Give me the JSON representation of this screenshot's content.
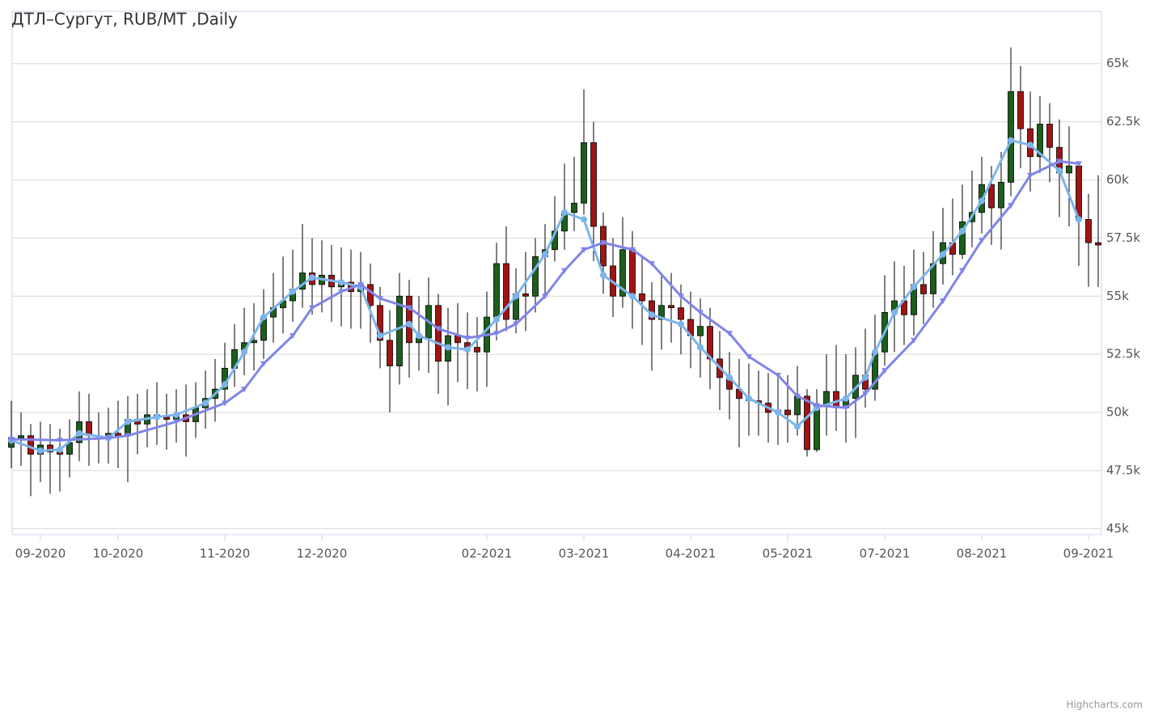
{
  "chart_data": {
    "type": "candlestick",
    "title": "ДТЛ–Сургут, RUB/MT ,Daily",
    "credit": "Highcharts.com",
    "up_color": "#1c5e1c",
    "down_color": "#a01414",
    "ylim": [
      44750,
      67250
    ],
    "yticks": [
      {
        "value": 45000,
        "label": "45k"
      },
      {
        "value": 47500,
        "label": "47.5k"
      },
      {
        "value": 50000,
        "label": "50k"
      },
      {
        "value": 52500,
        "label": "52.5k"
      },
      {
        "value": 55000,
        "label": "55k"
      },
      {
        "value": 57500,
        "label": "57.5k"
      },
      {
        "value": 60000,
        "label": "60k"
      },
      {
        "value": 62500,
        "label": "62.5k"
      },
      {
        "value": 65000,
        "label": "65k"
      }
    ],
    "grid": true,
    "categories": [
      null,
      null,
      null,
      "09-2020",
      null,
      null,
      null,
      null,
      null,
      null,
      null,
      "10-2020",
      null,
      null,
      null,
      null,
      null,
      null,
      null,
      null,
      null,
      null,
      "11-2020",
      null,
      null,
      null,
      null,
      null,
      null,
      null,
      null,
      null,
      "12-2020",
      null,
      null,
      null,
      null,
      null,
      null,
      null,
      null,
      null,
      null,
      null,
      null,
      null,
      null,
      null,
      null,
      "02-2021",
      null,
      null,
      null,
      null,
      null,
      null,
      null,
      null,
      null,
      "03-2021",
      null,
      null,
      null,
      null,
      null,
      null,
      null,
      null,
      null,
      null,
      "04-2021",
      null,
      null,
      null,
      null,
      null,
      null,
      null,
      null,
      null,
      "05-2021",
      null,
      null,
      null,
      null,
      null,
      null,
      null,
      null,
      null,
      "07-2021",
      null,
      null,
      null,
      null,
      null,
      null,
      null,
      null,
      null,
      "08-2021",
      null,
      null,
      null,
      null,
      null,
      null,
      null,
      null,
      null,
      null,
      "09-2021",
      null
    ],
    "open": [
      48500,
      48900,
      49000,
      48200,
      48600,
      48300,
      48200,
      48700,
      49600,
      49000,
      49000,
      49100,
      49000,
      49700,
      49500,
      49900,
      49800,
      49700,
      49900,
      49600,
      50200,
      50600,
      51000,
      51900,
      52700,
      53000,
      53100,
      54100,
      54500,
      54800,
      55300,
      56000,
      55500,
      55900,
      55400,
      55600,
      55200,
      55500,
      54600,
      53100,
      52000,
      55000,
      53000,
      53200,
      54600,
      52200,
      53300,
      53000,
      52800,
      52600,
      54100,
      56400,
      54000,
      55100,
      55000,
      56700,
      57000,
      57800,
      58600,
      59000,
      61600,
      58000,
      56300,
      55000,
      57000,
      55100,
      54800,
      54000,
      54600,
      54500,
      54000,
      53300,
      53700,
      52300,
      51500,
      51000,
      50600,
      50500,
      50400,
      50000,
      50100,
      49900,
      50700,
      48400,
      50300,
      50900,
      50200,
      50600,
      51600,
      51000,
      52600,
      54300,
      54800,
      54200,
      55500,
      55100,
      56400,
      57300,
      56800,
      58200,
      58600,
      59800,
      58800,
      59900,
      63800,
      62200,
      61000,
      62400,
      61400,
      60300,
      60600,
      58300,
      57300
    ],
    "high": [
      50500,
      50000,
      49500,
      49600,
      49500,
      49300,
      49700,
      50900,
      50800,
      50000,
      50200,
      50500,
      50700,
      50800,
      51000,
      51300,
      50800,
      51000,
      51200,
      51300,
      51800,
      52300,
      53000,
      53800,
      54500,
      54700,
      55300,
      56000,
      56700,
      57000,
      58100,
      57500,
      57400,
      57200,
      57100,
      57000,
      56900,
      56400,
      55400,
      54400,
      56000,
      55700,
      55000,
      55800,
      55100,
      54500,
      54700,
      54300,
      54100,
      55200,
      57300,
      58000,
      56200,
      56900,
      57500,
      58100,
      59300,
      60700,
      61000,
      63900,
      62500,
      58600,
      57500,
      58400,
      57800,
      56700,
      55600,
      55900,
      56000,
      55500,
      55200,
      54900,
      54500,
      53500,
      52600,
      52300,
      52100,
      51800,
      51700,
      51500,
      51600,
      52000,
      51000,
      51000,
      52500,
      52900,
      52500,
      52800,
      53600,
      54200,
      55900,
      56500,
      56300,
      57000,
      56900,
      57800,
      58800,
      59200,
      59800,
      60400,
      61000,
      60600,
      61200,
      65700,
      64900,
      63800,
      63600,
      63300,
      62600,
      62300,
      60600,
      59400,
      60200
    ],
    "low": [
      47600,
      47700,
      46400,
      47000,
      46500,
      46600,
      47200,
      47900,
      47700,
      47800,
      47800,
      47600,
      47000,
      48200,
      48500,
      48600,
      48400,
      48700,
      48100,
      48900,
      49300,
      49600,
      50500,
      51100,
      51600,
      51800,
      52300,
      53000,
      53400,
      53900,
      54500,
      54200,
      54300,
      53900,
      53700,
      53600,
      53600,
      53000,
      51900,
      50000,
      51200,
      51500,
      51800,
      51700,
      50800,
      50300,
      51300,
      51000,
      50900,
      51100,
      53100,
      53500,
      53400,
      53500,
      54300,
      55100,
      56500,
      57000,
      57800,
      58500,
      56500,
      55100,
      54100,
      54500,
      53600,
      52900,
      51800,
      52700,
      53000,
      52500,
      51900,
      51500,
      51000,
      50100,
      49700,
      48500,
      49000,
      49000,
      48700,
      48600,
      48700,
      49000,
      48100,
      48300,
      49000,
      49200,
      48700,
      48900,
      50200,
      50500,
      52000,
      52600,
      52900,
      53300,
      53800,
      54500,
      55500,
      55900,
      56600,
      57100,
      57700,
      57200,
      57000,
      59300,
      60500,
      59500,
      60300,
      59900,
      58400,
      58000,
      56300,
      55400,
      55400
    ],
    "close": [
      48900,
      49000,
      48200,
      48600,
      48300,
      48200,
      48700,
      49600,
      49000,
      49000,
      49100,
      49000,
      49700,
      49500,
      49900,
      49800,
      49700,
      49900,
      49600,
      50200,
      50600,
      51000,
      51900,
      52700,
      53000,
      53100,
      54100,
      54500,
      54800,
      55300,
      56000,
      55500,
      55900,
      55400,
      55600,
      55200,
      55500,
      54600,
      53100,
      52000,
      55000,
      53000,
      53200,
      54600,
      52200,
      53300,
      53000,
      52800,
      52600,
      54100,
      56400,
      54000,
      55100,
      55000,
      56700,
      57000,
      57800,
      58600,
      59000,
      61600,
      58000,
      56300,
      55000,
      57000,
      55100,
      54800,
      54000,
      54600,
      54500,
      54000,
      53300,
      53700,
      52300,
      51500,
      51000,
      50600,
      50500,
      50400,
      50000,
      50100,
      49900,
      50700,
      48400,
      50300,
      50900,
      50200,
      50600,
      51600,
      51000,
      52600,
      54300,
      54800,
      54200,
      55500,
      55100,
      56400,
      57300,
      56800,
      58200,
      58600,
      59800,
      58800,
      59900,
      63800,
      62200,
      61000,
      62400,
      61400,
      60300,
      60600,
      58300,
      57300,
      57200
    ],
    "series": [
      {
        "color": "#7cb5ec",
        "marker": "circle",
        "x": [
          0,
          3,
          5,
          7,
          10,
          12,
          15,
          17,
          20,
          22,
          24,
          26,
          29,
          31,
          34,
          36,
          38,
          41,
          42,
          45,
          47,
          50,
          52,
          55,
          57,
          59,
          61,
          64,
          66,
          69,
          71,
          74,
          76,
          79,
          81,
          83,
          86,
          88,
          89,
          91,
          93,
          96,
          98,
          100,
          103,
          105,
          108,
          110
        ],
        "values": [
          48800,
          48350,
          48400,
          49100,
          48900,
          49600,
          49800,
          49900,
          50400,
          51200,
          52600,
          54100,
          55200,
          55800,
          55600,
          55400,
          53300,
          53800,
          53300,
          52800,
          52700,
          54000,
          55000,
          56800,
          58600,
          58300,
          55900,
          55000,
          54200,
          53800,
          52800,
          51500,
          50600,
          50000,
          49400,
          50200,
          50600,
          51500,
          52600,
          54300,
          55400,
          56800,
          57800,
          59100,
          61700,
          61500,
          60400,
          58300
        ]
      },
      {
        "color": "#8085e9",
        "marker": "triangle-down",
        "x": [
          0,
          5,
          10,
          12,
          17,
          22,
          24,
          26,
          29,
          31,
          34,
          36,
          38,
          41,
          44,
          47,
          50,
          52,
          55,
          57,
          59,
          61,
          64,
          66,
          69,
          71,
          74,
          76,
          79,
          81,
          83,
          86,
          88,
          90,
          93,
          96,
          98,
          100,
          103,
          105,
          108,
          110
        ],
        "values": [
          48850,
          48800,
          48900,
          49000,
          49600,
          50400,
          51000,
          52100,
          53300,
          54500,
          55200,
          55500,
          54900,
          54500,
          53600,
          53200,
          53400,
          53800,
          55000,
          56100,
          57000,
          57300,
          57000,
          56400,
          55000,
          54300,
          53400,
          52400,
          51600,
          50700,
          50300,
          50200,
          50800,
          51800,
          53100,
          54800,
          56100,
          57400,
          58900,
          60200,
          60800,
          60700
        ]
      }
    ]
  }
}
